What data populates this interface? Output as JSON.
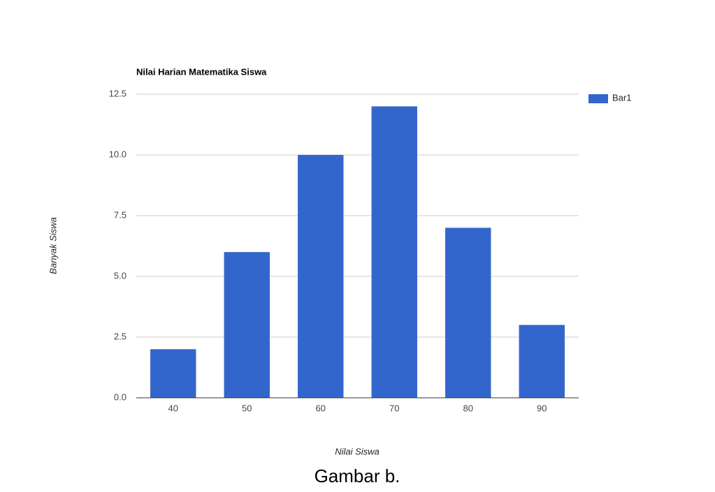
{
  "chart_data": {
    "type": "bar",
    "title": "Nilai Harian Matematika Siswa",
    "x_label": "Nilai Siswa",
    "y_label": "Banyak Siswa",
    "categories": [
      "40",
      "50",
      "60",
      "70",
      "80",
      "90"
    ],
    "series": [
      {
        "name": "Bar1",
        "color": "#3366cc",
        "values": [
          2,
          6,
          10,
          12,
          7,
          3
        ]
      }
    ],
    "ylim": [
      0,
      12.5
    ],
    "yticks": [
      {
        "value": 0,
        "label": "0.0"
      },
      2.5,
      {
        "value": 5,
        "label": "5.0"
      },
      7.5,
      {
        "value": 10,
        "label": "10.0"
      },
      12.5
    ],
    "grid": true,
    "legend": "right"
  },
  "caption": "Gambar b."
}
